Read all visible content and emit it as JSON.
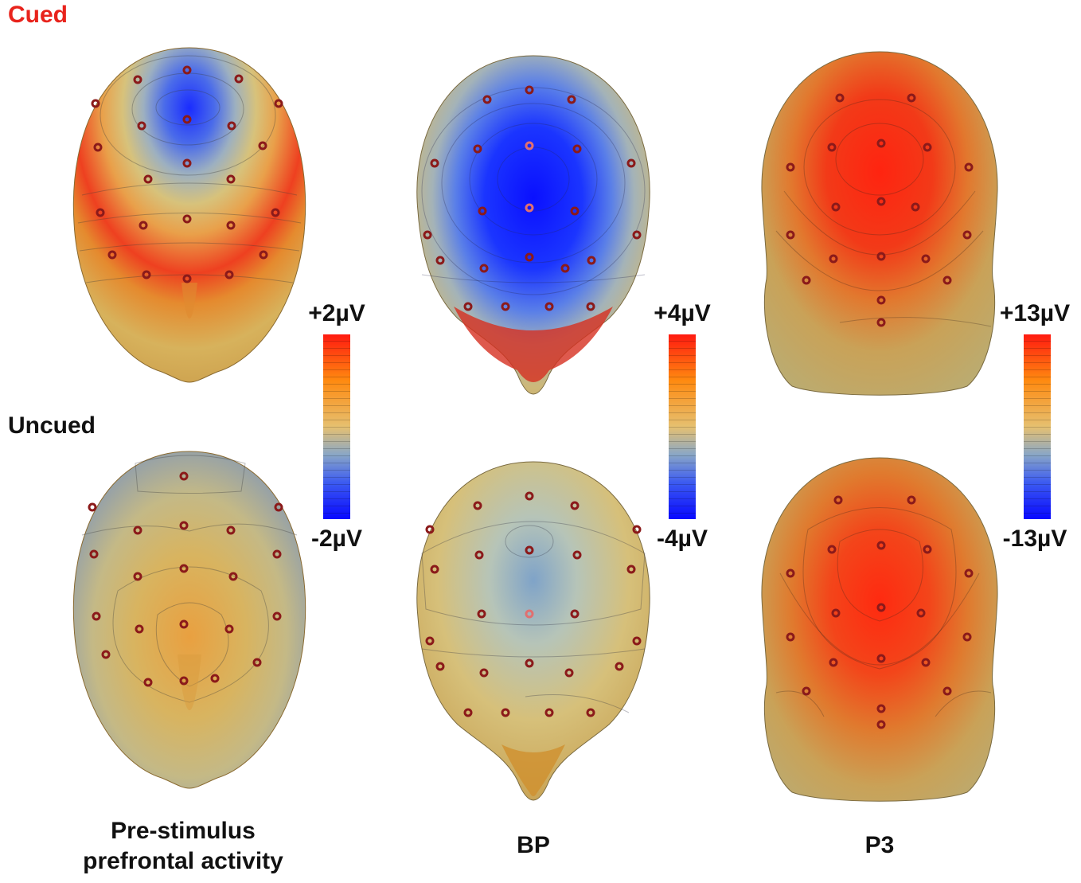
{
  "rows": [
    {
      "label": "Cued",
      "color": "#e8231c"
    },
    {
      "label": "Uncued",
      "color": "#111111"
    }
  ],
  "columns": [
    {
      "title_line1": "Pre-stimulus",
      "title_line2": "prefrontal activity",
      "scale_max": "+2µV",
      "scale_min": "-2µV"
    },
    {
      "title_line1": "BP",
      "title_line2": "",
      "scale_max": "+4µV",
      "scale_min": "-4µV"
    },
    {
      "title_line1": "P3",
      "title_line2": "",
      "scale_max": "+13µV",
      "scale_min": "-13µV"
    }
  ],
  "colors": {
    "positive": "#ff2a10",
    "neutral": "#d8c27a",
    "negative": "#1010ff",
    "skin": "#d9b15c",
    "electrode": "#8b1a1a"
  }
}
